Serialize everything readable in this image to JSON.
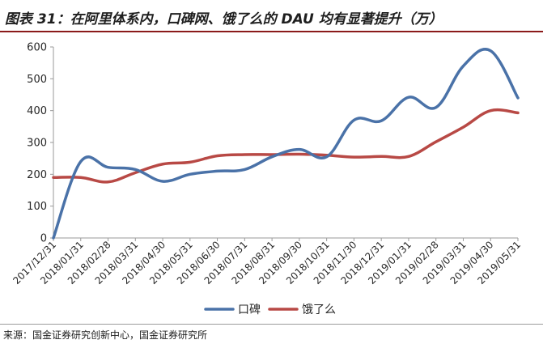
{
  "title": "图表 31：在阿里体系内，口碑网、饿了么的 DAU 均有显著提升（万）",
  "source": "来源：国金证券研究创新中心，国金证券研究所",
  "chart_data": {
    "type": "line",
    "categories": [
      "2017/12/31",
      "2018/01/31",
      "2018/02/28",
      "2018/03/31",
      "2018/04/30",
      "2018/05/31",
      "2018/06/30",
      "2018/07/31",
      "2018/08/31",
      "2018/09/30",
      "2018/10/31",
      "2018/11/30",
      "2018/12/31",
      "2019/01/31",
      "2019/02/28",
      "2019/03/31",
      "2019/04/30",
      "2019/05/31"
    ],
    "series": [
      {
        "name": "口碑",
        "color": "#4a72a8",
        "values": [
          0,
          240,
          222,
          215,
          178,
          200,
          210,
          215,
          255,
          278,
          255,
          370,
          368,
          442,
          410,
          540,
          588,
          440
        ]
      },
      {
        "name": "饿了么",
        "color": "#b84945",
        "values": [
          190,
          190,
          176,
          205,
          232,
          238,
          258,
          262,
          262,
          263,
          260,
          254,
          256,
          256,
          302,
          348,
          400,
          393
        ]
      }
    ],
    "ylim": [
      0,
      600
    ],
    "yticks": [
      0,
      100,
      200,
      300,
      400,
      500,
      600
    ],
    "xlabel": "",
    "ylabel": "",
    "grid": false,
    "legend": "bottom-center"
  }
}
